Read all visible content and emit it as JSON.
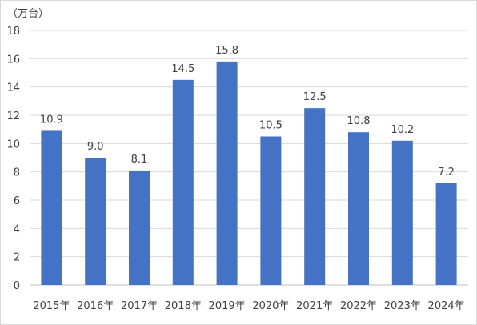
{
  "chart_data": {
    "type": "bar",
    "title": "",
    "xlabel": "",
    "ylabel": "",
    "unit_label": "（万台）",
    "categories": [
      "2015年",
      "2016年",
      "2017年",
      "2018年",
      "2019年",
      "2020年",
      "2021年",
      "2022年",
      "2023年",
      "2024年"
    ],
    "values": [
      10.9,
      9.0,
      8.1,
      14.5,
      15.8,
      10.5,
      12.5,
      10.8,
      10.2,
      7.2
    ],
    "value_labels": [
      "10.9",
      "9.0",
      "8.1",
      "14.5",
      "15.8",
      "10.5",
      "12.5",
      "10.8",
      "10.2",
      "7.2"
    ],
    "ylim": [
      0,
      18
    ],
    "yticks": [
      0,
      2,
      4,
      6,
      8,
      10,
      12,
      14,
      16,
      18
    ],
    "grid": true,
    "legend": "none",
    "bar_color": "#4472c4"
  }
}
